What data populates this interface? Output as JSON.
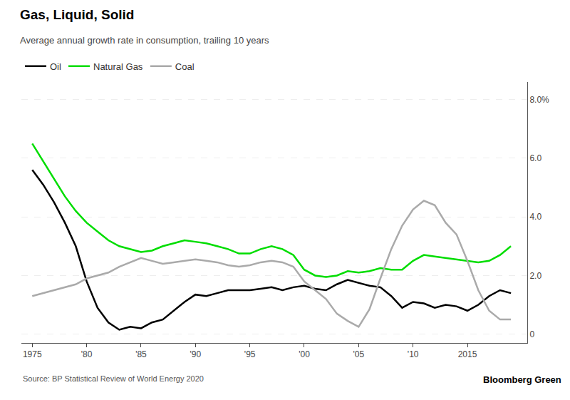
{
  "chart_data": {
    "type": "line",
    "title": "Gas, Liquid, Solid",
    "subtitle": "Average annual growth rate in consumption, trailing 10 years",
    "annotations": [
      "Source: BP Statistical Review of World Energy 2020",
      "Bloomberg Green"
    ],
    "x": [
      1975,
      1976,
      1977,
      1978,
      1979,
      1980,
      1981,
      1982,
      1983,
      1984,
      1985,
      1986,
      1987,
      1988,
      1989,
      1990,
      1991,
      1992,
      1993,
      1994,
      1995,
      1996,
      1997,
      1998,
      1999,
      2000,
      2001,
      2002,
      2003,
      2004,
      2005,
      2006,
      2007,
      2008,
      2009,
      2010,
      2011,
      2012,
      2013,
      2014,
      2015,
      2016,
      2017,
      2018,
      2019
    ],
    "series": [
      {
        "name": "Oil",
        "color": "#000000",
        "values": [
          5.6,
          5.1,
          4.5,
          3.8,
          3.0,
          1.8,
          0.9,
          0.4,
          0.15,
          0.25,
          0.2,
          0.4,
          0.5,
          0.8,
          1.1,
          1.35,
          1.3,
          1.4,
          1.5,
          1.5,
          1.5,
          1.55,
          1.6,
          1.5,
          1.6,
          1.65,
          1.55,
          1.5,
          1.7,
          1.85,
          1.75,
          1.65,
          1.6,
          1.3,
          0.9,
          1.1,
          1.05,
          0.9,
          1.0,
          0.95,
          0.8,
          1.0,
          1.3,
          1.5,
          1.4
        ]
      },
      {
        "name": "Natural Gas",
        "color": "#00dd00",
        "values": [
          6.5,
          5.9,
          5.3,
          4.7,
          4.2,
          3.8,
          3.5,
          3.2,
          3.0,
          2.9,
          2.8,
          2.85,
          3.0,
          3.1,
          3.2,
          3.15,
          3.1,
          3.0,
          2.9,
          2.75,
          2.75,
          2.9,
          3.0,
          2.9,
          2.7,
          2.2,
          2.0,
          1.95,
          2.0,
          2.15,
          2.1,
          2.15,
          2.25,
          2.2,
          2.2,
          2.5,
          2.7,
          2.65,
          2.6,
          2.55,
          2.5,
          2.45,
          2.5,
          2.7,
          3.0
        ]
      },
      {
        "name": "Coal",
        "color": "#aaaaaa",
        "values": [
          1.3,
          1.4,
          1.5,
          1.6,
          1.7,
          1.9,
          2.0,
          2.1,
          2.3,
          2.45,
          2.6,
          2.5,
          2.4,
          2.45,
          2.5,
          2.55,
          2.5,
          2.45,
          2.35,
          2.3,
          2.35,
          2.45,
          2.5,
          2.45,
          2.3,
          1.8,
          1.5,
          1.2,
          0.7,
          0.45,
          0.25,
          0.85,
          1.9,
          2.9,
          3.7,
          4.25,
          4.55,
          4.4,
          3.8,
          3.4,
          2.5,
          1.5,
          0.8,
          0.5,
          0.5
        ]
      }
    ],
    "xlim": [
      1974,
      2020.5
    ],
    "ylim": [
      -0.3,
      8.6
    ],
    "xticks": [
      1975,
      {
        "value": 1980,
        "label": "'80"
      },
      {
        "value": 1985,
        "label": "'85"
      },
      {
        "value": 1990,
        "label": "'90"
      },
      {
        "value": 1995,
        "label": "'95"
      },
      {
        "value": 2000,
        "label": "'00"
      },
      {
        "value": 2005,
        "label": "'05"
      },
      {
        "value": 2010,
        "label": "'10"
      },
      2015
    ],
    "yticks": [
      0,
      {
        "value": 2.0,
        "label": "2.0"
      },
      {
        "value": 4.0,
        "label": "4.0"
      },
      {
        "value": 6.0,
        "label": "6.0"
      },
      {
        "value": 8.0,
        "label": "8.0%"
      }
    ],
    "grid": "y",
    "legend": "upper left"
  }
}
